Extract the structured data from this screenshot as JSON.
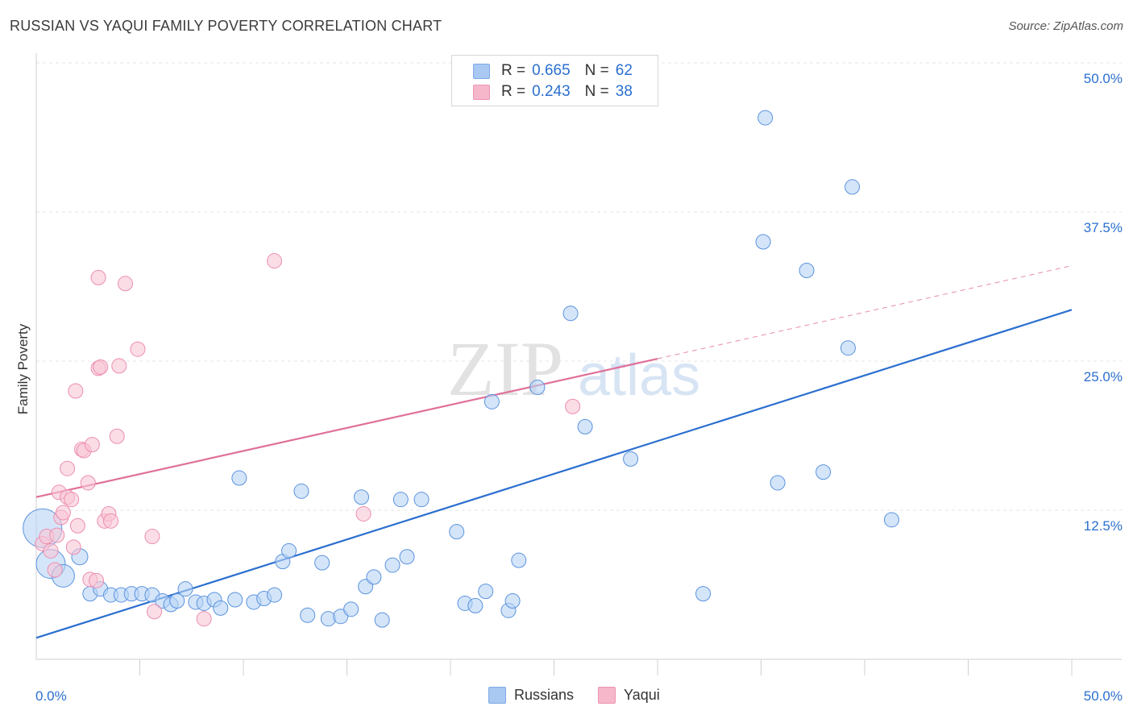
{
  "title": "RUSSIAN VS YAQUI FAMILY POVERTY CORRELATION CHART",
  "source": "Source: ZipAtlas.com",
  "watermark": {
    "zip": "ZIP",
    "atlas": "atlas"
  },
  "legend": {
    "rows": [
      {
        "r_label": "R =",
        "r_value": "0.665",
        "n_label": "N =",
        "n_value": "62",
        "color": "#a9c8f2"
      },
      {
        "r_label": "R =",
        "r_value": "0.243",
        "n_label": "N =",
        "n_value": "38",
        "color": "#f6b7cb"
      }
    ]
  },
  "bottom_legend": [
    {
      "name": "Russians",
      "color": "#a9c8f2"
    },
    {
      "name": "Yaqui",
      "color": "#f6b7cb"
    }
  ],
  "chart_data": {
    "type": "scatter",
    "title": "RUSSIAN VS YAQUI FAMILY POVERTY CORRELATION CHART",
    "xlabel": "",
    "ylabel": "Family Poverty",
    "xlim": [
      0,
      50
    ],
    "ylim": [
      0,
      50
    ],
    "x_tick_labels": [
      {
        "value": 0,
        "label": "0.0%"
      },
      {
        "value": 50,
        "label": "50.0%"
      }
    ],
    "y_tick_labels": [
      {
        "value": 12.5,
        "label": "12.5%"
      },
      {
        "value": 25,
        "label": "25.0%"
      },
      {
        "value": 37.5,
        "label": "37.5%"
      },
      {
        "value": 50,
        "label": "50.0%"
      }
    ],
    "grid": true,
    "legend_position": "top-center",
    "series": [
      {
        "name": "Russians",
        "color": "#5b93de",
        "fill": "#b8d3f5",
        "trend": {
          "x": [
            0,
            50
          ],
          "y": [
            1.8,
            29.3
          ],
          "color": "#2b6fcf"
        },
        "points": [
          [
            0.3,
            11.0,
            24
          ],
          [
            0.7,
            8.0,
            18
          ],
          [
            1.3,
            7.0,
            14
          ],
          [
            2.1,
            8.6,
            10
          ],
          [
            2.6,
            5.5,
            9
          ],
          [
            3.1,
            5.9,
            9
          ],
          [
            3.6,
            5.4,
            9
          ],
          [
            4.1,
            5.4,
            9
          ],
          [
            4.6,
            5.5,
            9
          ],
          [
            5.1,
            5.5,
            9
          ],
          [
            5.6,
            5.4,
            9
          ],
          [
            6.1,
            4.9,
            9
          ],
          [
            6.5,
            4.6,
            9
          ],
          [
            6.8,
            4.9,
            9
          ],
          [
            7.2,
            5.9,
            9
          ],
          [
            7.7,
            4.8,
            9
          ],
          [
            8.1,
            4.7,
            9
          ],
          [
            8.6,
            5.0,
            9
          ],
          [
            8.9,
            4.3,
            9
          ],
          [
            9.6,
            5.0,
            9
          ],
          [
            9.8,
            15.2,
            9
          ],
          [
            10.5,
            4.8,
            9
          ],
          [
            11.0,
            5.1,
            9
          ],
          [
            11.5,
            5.4,
            9
          ],
          [
            11.9,
            8.2,
            9
          ],
          [
            12.2,
            9.1,
            9
          ],
          [
            12.8,
            14.1,
            9
          ],
          [
            13.1,
            3.7,
            9
          ],
          [
            13.8,
            8.1,
            9
          ],
          [
            14.1,
            3.4,
            9
          ],
          [
            14.7,
            3.6,
            9
          ],
          [
            15.2,
            4.2,
            9
          ],
          [
            15.7,
            13.6,
            9
          ],
          [
            15.9,
            6.1,
            9
          ],
          [
            16.3,
            6.9,
            9
          ],
          [
            16.7,
            3.3,
            9
          ],
          [
            17.2,
            7.9,
            9
          ],
          [
            17.6,
            13.4,
            9
          ],
          [
            17.9,
            8.6,
            9
          ],
          [
            18.6,
            13.4,
            9
          ],
          [
            20.3,
            10.7,
            9
          ],
          [
            20.7,
            4.7,
            9
          ],
          [
            21.2,
            4.5,
            9
          ],
          [
            21.7,
            5.7,
            9
          ],
          [
            22.0,
            21.6,
            9
          ],
          [
            22.8,
            4.1,
            9
          ],
          [
            23.0,
            4.9,
            9
          ],
          [
            23.3,
            8.3,
            9
          ],
          [
            24.2,
            22.8,
            9
          ],
          [
            25.8,
            29.0,
            9
          ],
          [
            26.5,
            19.5,
            9
          ],
          [
            28.7,
            16.8,
            9
          ],
          [
            32.2,
            5.5,
            9
          ],
          [
            35.2,
            45.4,
            9
          ],
          [
            35.1,
            35.0,
            9
          ],
          [
            35.8,
            14.8,
            9
          ],
          [
            37.2,
            32.6,
            9
          ],
          [
            38.0,
            15.7,
            9
          ],
          [
            39.2,
            26.1,
            9
          ],
          [
            39.4,
            39.6,
            9
          ],
          [
            41.3,
            11.7,
            9
          ]
        ]
      },
      {
        "name": "Yaqui",
        "color": "#ec8db0",
        "fill": "#f9c6d6",
        "trend": {
          "x": [
            0,
            30
          ],
          "y": [
            13.6,
            25.2
          ],
          "dash_to": [
            50,
            33.0
          ],
          "color": "#e0709a"
        },
        "points": [
          [
            0.3,
            9.7,
            9
          ],
          [
            0.5,
            10.3,
            9
          ],
          [
            0.7,
            9.1,
            9
          ],
          [
            0.9,
            7.5,
            9
          ],
          [
            1.0,
            10.4,
            9
          ],
          [
            1.1,
            14.0,
            9
          ],
          [
            1.2,
            11.9,
            9
          ],
          [
            1.3,
            12.3,
            9
          ],
          [
            1.5,
            16.0,
            9
          ],
          [
            1.5,
            13.6,
            9
          ],
          [
            1.7,
            13.4,
            9
          ],
          [
            1.8,
            9.4,
            9
          ],
          [
            1.9,
            22.5,
            9
          ],
          [
            2.0,
            11.2,
            9
          ],
          [
            2.2,
            17.6,
            9
          ],
          [
            2.3,
            17.5,
            9
          ],
          [
            2.5,
            14.8,
            9
          ],
          [
            2.6,
            6.7,
            9
          ],
          [
            2.7,
            18.0,
            9
          ],
          [
            2.9,
            6.6,
            9
          ],
          [
            3.0,
            32.0,
            9
          ],
          [
            3.0,
            24.4,
            9
          ],
          [
            3.1,
            24.5,
            9
          ],
          [
            3.3,
            11.6,
            9
          ],
          [
            3.5,
            12.2,
            9
          ],
          [
            3.6,
            11.6,
            9
          ],
          [
            3.9,
            18.7,
            9
          ],
          [
            4.0,
            24.6,
            9
          ],
          [
            4.3,
            31.5,
            9
          ],
          [
            4.9,
            26.0,
            9
          ],
          [
            5.6,
            10.3,
            9
          ],
          [
            5.7,
            4.0,
            9
          ],
          [
            8.1,
            3.4,
            9
          ],
          [
            11.5,
            33.4,
            9
          ],
          [
            15.8,
            12.2,
            9
          ],
          [
            25.9,
            21.2,
            9
          ]
        ]
      }
    ]
  }
}
